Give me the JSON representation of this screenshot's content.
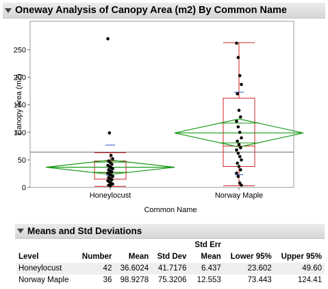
{
  "report": {
    "title": "Oneway Analysis of Canopy Area (m2) By Common Name",
    "means_section_title": "Means and Std Deviations"
  },
  "chart_data": {
    "type": "scatter",
    "ylabel": "Canopy Area (m2)",
    "xlabel": "Common Name",
    "ylim": [
      0,
      270
    ],
    "yticks": [
      0,
      50,
      100,
      150,
      200,
      250
    ],
    "categories": [
      "Honeylocust",
      "Norway Maple"
    ],
    "grand_mean": 64,
    "groups": [
      {
        "name": "Honeylocust",
        "points": [
          270,
          99,
          58,
          52,
          48,
          45,
          42,
          40,
          38,
          36,
          34,
          32,
          30,
          28,
          26,
          24,
          22,
          20,
          18,
          16,
          14,
          12,
          10,
          8,
          6,
          4,
          3
        ],
        "box": {
          "q1": 15,
          "median": 27,
          "q3": 48,
          "whisker_low": 2,
          "whisker_high": 63
        },
        "mean": 36.6,
        "ci_lower": 23.6,
        "ci_upper": 49.6,
        "quantile_mark": 77,
        "diamond_color": "#1a9a1a"
      },
      {
        "name": "Norway Maple",
        "points": [
          262,
          236,
          203,
          187,
          170,
          140,
          128,
          120,
          110,
          100,
          90,
          84,
          78,
          72,
          68,
          62,
          56,
          50,
          44,
          38,
          32,
          26,
          20,
          8,
          4
        ],
        "box": {
          "q1": 38,
          "median": 75,
          "q3": 162,
          "whisker_low": 3,
          "whisker_high": 263
        },
        "mean": 98.9,
        "ci_lower": 73.4,
        "ci_upper": 124.4,
        "quantile_mark": 173,
        "diamond_color": "#1a9a1a"
      }
    ],
    "colors": {
      "box": "#cc2222",
      "diamond": "#1a9a1a",
      "grand_mean": "#6a6a6a",
      "quantile": "#3355cc",
      "points": "#000000"
    }
  },
  "table": {
    "headers": {
      "level": "Level",
      "number": "Number",
      "mean": "Mean",
      "std_dev": "Std Dev",
      "std_err_top": "Std Err",
      "std_err_bottom": "Mean",
      "lower": "Lower 95%",
      "upper": "Upper 95%"
    },
    "rows": [
      {
        "level": "Honeylocust",
        "number": "42",
        "mean": "36.6024",
        "std_dev": "41.7176",
        "std_err": "6.437",
        "lower": "23.602",
        "upper": "49.60"
      },
      {
        "level": "Norway Maple",
        "number": "36",
        "mean": "98.9278",
        "std_dev": "75.3206",
        "std_err": "12.553",
        "lower": "73.443",
        "upper": "124.41"
      }
    ]
  }
}
